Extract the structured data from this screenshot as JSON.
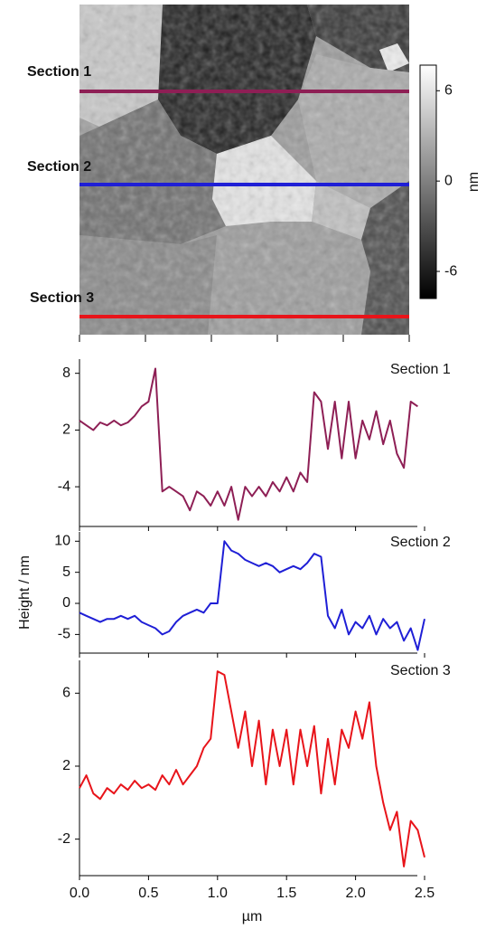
{
  "chart_data": [
    {
      "type": "image",
      "colorbar_label": "nm",
      "clim": [
        -7.8,
        7.7
      ],
      "cticks": [
        6,
        0,
        -6
      ]
    },
    {
      "type": "line",
      "title": "Section 1",
      "color": "#8e1f55",
      "x": [
        0,
        0.05,
        0.1,
        0.15,
        0.2,
        0.25,
        0.3,
        0.35,
        0.4,
        0.45,
        0.5,
        0.55,
        0.6,
        0.65,
        0.7,
        0.75,
        0.8,
        0.85,
        0.9,
        0.95,
        1,
        1.05,
        1.1,
        1.15,
        1.2,
        1.25,
        1.3,
        1.35,
        1.4,
        1.45,
        1.5,
        1.55,
        1.6,
        1.65,
        1.7,
        1.75,
        1.8,
        1.85,
        1.9,
        1.95,
        2,
        2.05,
        2.1,
        2.15,
        2.2,
        2.25,
        2.3,
        2.35,
        2.4,
        2.45
      ],
      "values": [
        3,
        2.5,
        2,
        2.8,
        2.5,
        3,
        2.5,
        2.8,
        3.5,
        4.5,
        5,
        8.5,
        -4.5,
        -4,
        -4.5,
        -5,
        -6.5,
        -4.5,
        -5,
        -6,
        -4.5,
        -6,
        -4,
        -7.5,
        -4,
        -5,
        -4,
        -5,
        -3.5,
        -4.5,
        -3,
        -4.5,
        -2.5,
        -3.5,
        6,
        5,
        0,
        5,
        -1,
        5,
        -1,
        3,
        1,
        4,
        0.5,
        3,
        -0.5,
        -2,
        5,
        4.5
      ],
      "xlim": [
        0,
        2.5
      ],
      "ylim": [
        -8.2,
        9.5
      ],
      "yticks": [
        8,
        2,
        -4
      ]
    },
    {
      "type": "line",
      "title": "Section 2",
      "color": "#1f1fd6",
      "ylabel": "Height / nm",
      "x": [
        0,
        0.05,
        0.1,
        0.15,
        0.2,
        0.25,
        0.3,
        0.35,
        0.4,
        0.45,
        0.5,
        0.55,
        0.6,
        0.65,
        0.7,
        0.75,
        0.8,
        0.85,
        0.9,
        0.95,
        1,
        1.05,
        1.1,
        1.15,
        1.2,
        1.25,
        1.3,
        1.35,
        1.4,
        1.45,
        1.5,
        1.55,
        1.6,
        1.65,
        1.7,
        1.75,
        1.8,
        1.85,
        1.9,
        1.95,
        2,
        2.05,
        2.1,
        2.15,
        2.2,
        2.25,
        2.3,
        2.35,
        2.4,
        2.45,
        2.5
      ],
      "values": [
        -1.5,
        -2,
        -2.5,
        -3,
        -2.5,
        -2.5,
        -2,
        -2.5,
        -2,
        -3,
        -3.5,
        -4,
        -5,
        -4.5,
        -3,
        -2,
        -1.5,
        -1,
        -1.5,
        0,
        0,
        10,
        8.5,
        8,
        7,
        6.5,
        6,
        6.5,
        6,
        5,
        5.5,
        6,
        5.5,
        6.5,
        8,
        7.5,
        -2,
        -4,
        -1,
        -5,
        -3,
        -4,
        -2,
        -5,
        -2.5,
        -4,
        -3,
        -6,
        -4,
        -7.5,
        -2.5
      ],
      "xlim": [
        0,
        2.5
      ],
      "ylim": [
        -8,
        11.5
      ],
      "yticks": [
        10,
        5,
        0,
        -5
      ]
    },
    {
      "type": "line",
      "title": "Section 3",
      "color": "#e8141a",
      "xlabel": "µm",
      "x": [
        0,
        0.05,
        0.1,
        0.15,
        0.2,
        0.25,
        0.3,
        0.35,
        0.4,
        0.45,
        0.5,
        0.55,
        0.6,
        0.65,
        0.7,
        0.75,
        0.8,
        0.85,
        0.9,
        0.95,
        1,
        1.05,
        1.1,
        1.15,
        1.2,
        1.25,
        1.3,
        1.35,
        1.4,
        1.45,
        1.5,
        1.55,
        1.6,
        1.65,
        1.7,
        1.75,
        1.8,
        1.85,
        1.9,
        1.95,
        2,
        2.05,
        2.1,
        2.15,
        2.2,
        2.25,
        2.3,
        2.35,
        2.4,
        2.45,
        2.5
      ],
      "values": [
        0.8,
        1.5,
        0.5,
        0.2,
        0.8,
        0.5,
        1,
        0.7,
        1.2,
        0.8,
        1,
        0.7,
        1.5,
        1,
        1.8,
        1,
        1.5,
        2,
        3,
        3.5,
        7.2,
        7,
        5,
        3,
        5,
        2,
        4.5,
        1,
        4,
        2,
        4,
        1,
        4,
        2,
        4.2,
        0.5,
        3.5,
        1,
        4,
        3,
        5,
        3.5,
        5.5,
        2,
        0,
        -1.5,
        -0.5,
        -3.5,
        -1,
        -1.5,
        -3
      ],
      "xlim": [
        0,
        2.5
      ],
      "ylim": [
        -4,
        7.8
      ],
      "yticks": [
        6,
        2,
        -2
      ],
      "xticks": [
        {
          "value": 0,
          "label": "0.0"
        },
        0.5,
        {
          "value": 1,
          "label": "1.0"
        },
        1.5,
        {
          "value": 2,
          "label": "2.0"
        },
        2.5
      ]
    }
  ]
}
